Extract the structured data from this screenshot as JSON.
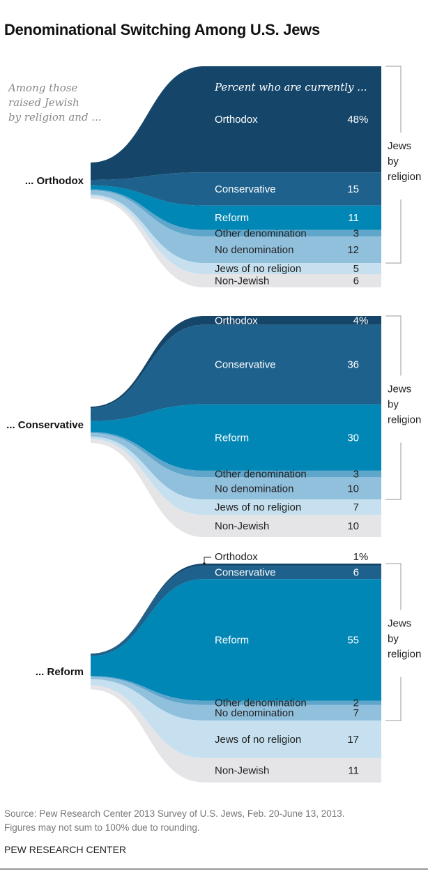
{
  "title": "Denominational Switching Among U.S. Jews",
  "intro": [
    "Among those",
    "raised Jewish",
    "by religion and ..."
  ],
  "header": "Percent who are currently ...",
  "bracket_label": [
    "Jews",
    "by",
    "religion"
  ],
  "colors": {
    "Orthodox": "#15466a",
    "Conservative": "#1e618c",
    "Reform": "#0087b5",
    "Other denomination": "#60a6cb",
    "No denomination": "#91c0dd",
    "Jews of no religion": "#c6e0ef",
    "Non-Jewish": "#e5e5e7"
  },
  "chart_data": [
    {
      "type": "sankey",
      "origin": "... Orthodox",
      "categories": [
        "Orthodox",
        "Conservative",
        "Reform",
        "Other denomination",
        "No denomination",
        "Jews of no religion",
        "Non-Jewish"
      ],
      "values": [
        48,
        15,
        11,
        3,
        12,
        5,
        6
      ],
      "unit": "%"
    },
    {
      "type": "sankey",
      "origin": "... Conservative",
      "categories": [
        "Orthodox",
        "Conservative",
        "Reform",
        "Other denomination",
        "No denomination",
        "Jews of no religion",
        "Non-Jewish"
      ],
      "values": [
        4,
        36,
        30,
        3,
        10,
        7,
        10
      ],
      "unit": "%"
    },
    {
      "type": "sankey",
      "origin": "... Reform",
      "categories": [
        "Orthodox",
        "Conservative",
        "Reform",
        "Other denomination",
        "No denomination",
        "Jews of no religion",
        "Non-Jewish"
      ],
      "values": [
        1,
        6,
        55,
        2,
        7,
        17,
        11
      ],
      "unit": "%"
    }
  ],
  "footer": {
    "source": "Source: Pew Research Center 2013 Survey of U.S. Jews, Feb. 20-June 13, 2013.",
    "note": "Figures may not sum to 100% due to rounding.",
    "brand": "PEW RESEARCH CENTER"
  }
}
